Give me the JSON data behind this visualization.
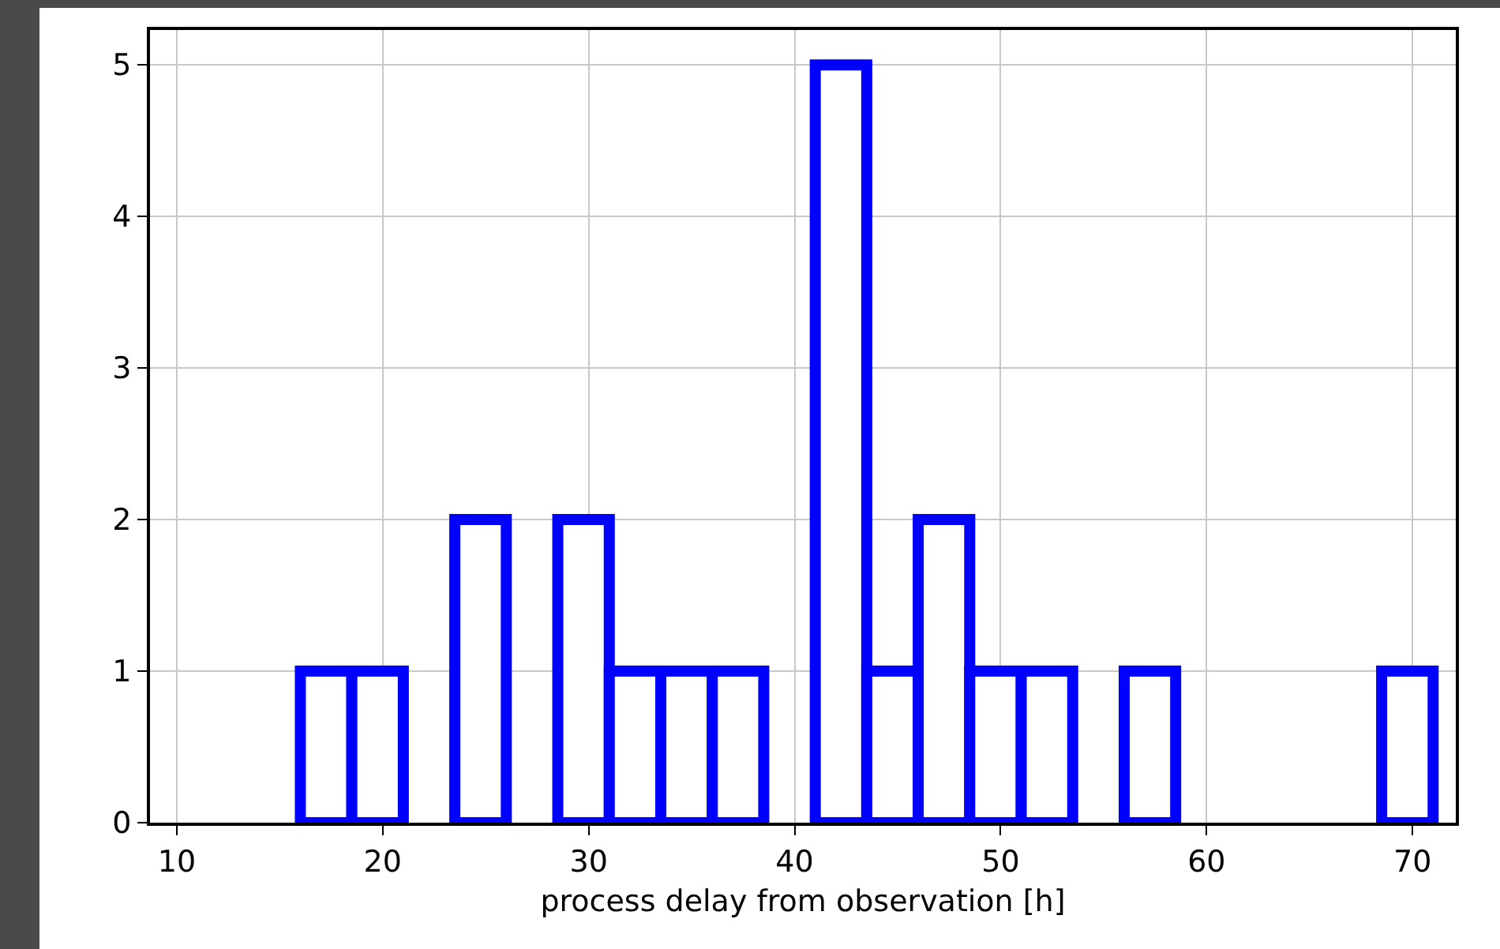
{
  "chart_data": {
    "type": "histogram",
    "xlabel": "process delay from observation [h]",
    "bins": [
      16,
      18.5,
      21,
      23.5,
      26,
      28.5,
      31,
      33.5,
      36,
      38.5,
      41,
      43.5,
      46,
      48.5,
      51,
      53.5,
      56,
      58.5,
      61,
      63.5,
      66,
      68.5,
      71
    ],
    "values": [
      1,
      1,
      0,
      2,
      0,
      2,
      1,
      1,
      1,
      0,
      5,
      1,
      2,
      1,
      1,
      0,
      1,
      0,
      0,
      0,
      0,
      1
    ],
    "color": "#0000ff",
    "xlim": [
      8.7,
      72.1
    ],
    "xticks": [
      10,
      20,
      30,
      40,
      50,
      60,
      70
    ],
    "ylim": [
      0,
      5.23
    ],
    "yticks": [
      0,
      1,
      2,
      3,
      4,
      5
    ],
    "grid": true,
    "legend": false
  }
}
